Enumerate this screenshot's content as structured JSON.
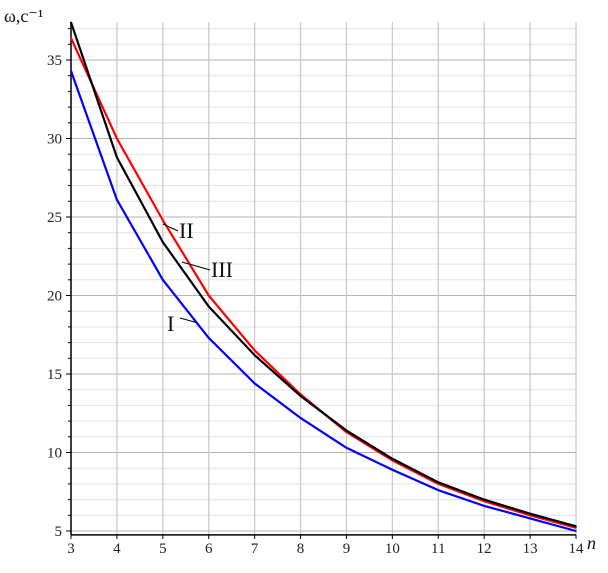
{
  "chart_data": {
    "type": "line",
    "title": "",
    "xlabel": "n",
    "ylabel": "ω,c⁻¹",
    "xlim": [
      3,
      14
    ],
    "ylim": [
      4.75,
      37.4
    ],
    "grid": true,
    "x": [
      3,
      4,
      5,
      6,
      7,
      8,
      9,
      10,
      11,
      12,
      13,
      14
    ],
    "xticks": [
      "3",
      "4",
      "5",
      "6",
      "7",
      "8",
      "9",
      "10",
      "11",
      "12",
      "13",
      "14"
    ],
    "yticks": [
      "5",
      "10",
      "15",
      "20",
      "25",
      "30",
      "35"
    ],
    "series": [
      {
        "name": "I",
        "color": "#0000ff",
        "values": [
          34.3,
          26.1,
          21.0,
          17.3,
          14.4,
          12.2,
          10.3,
          8.9,
          7.6,
          6.6,
          5.8,
          5.0
        ]
      },
      {
        "name": "II",
        "color": "#ff0000",
        "values": [
          36.4,
          30.0,
          24.8,
          20.0,
          16.5,
          13.7,
          11.3,
          9.5,
          8.0,
          6.9,
          6.0,
          5.2
        ]
      },
      {
        "name": "III",
        "color": "#000000",
        "values": [
          37.4,
          28.8,
          23.4,
          19.3,
          16.2,
          13.6,
          11.4,
          9.6,
          8.1,
          7.0,
          6.1,
          5.3
        ]
      }
    ],
    "annotations": [
      "II",
      "III",
      "I"
    ]
  }
}
